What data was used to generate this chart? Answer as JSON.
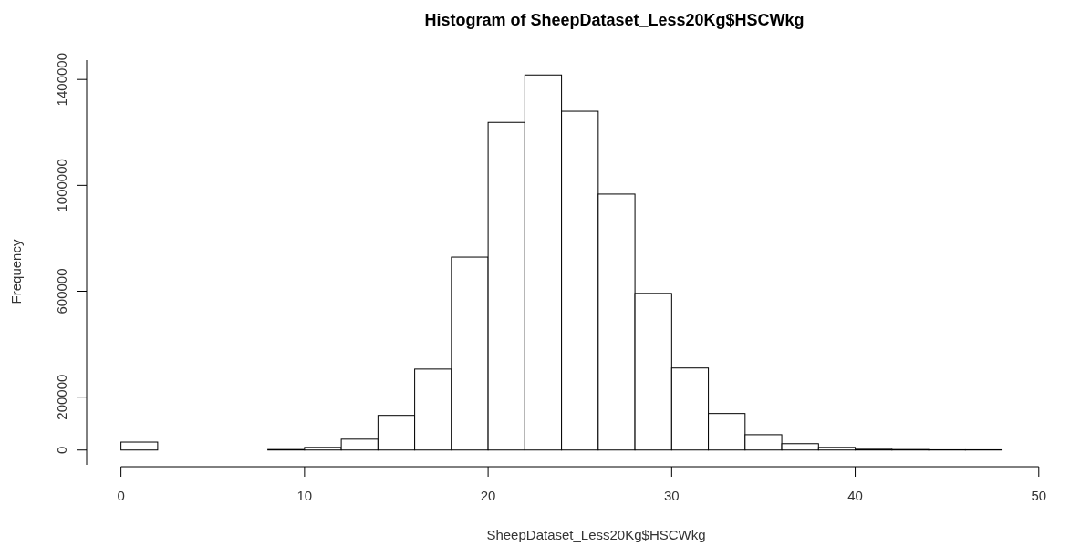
{
  "chart_data": {
    "type": "histogram",
    "title": "Histogram of SheepDataset_Less20Kg$HSCWkg",
    "xlabel": "SheepDataset_Less20Kg$HSCWkg",
    "ylabel": "Frequency",
    "bins": [
      0,
      2,
      4,
      6,
      8,
      10,
      12,
      14,
      16,
      18,
      20,
      22,
      24,
      26,
      28,
      30,
      32,
      34,
      36,
      38,
      40,
      42,
      44,
      46,
      48
    ],
    "values": [
      30000,
      0,
      0,
      0,
      2000,
      10000,
      41000,
      131000,
      306000,
      729000,
      1238000,
      1417000,
      1280000,
      967000,
      592000,
      310000,
      138000,
      58000,
      24000,
      10000,
      3000,
      2000,
      1000,
      1000
    ],
    "color": "#ffffff",
    "xlim": [
      -1.92,
      51.7
    ],
    "ylim": [
      -56000,
      1473000
    ],
    "xticks": [
      0,
      10,
      20,
      30,
      40,
      50
    ],
    "yticks": [
      0,
      200000,
      600000,
      1000000,
      1400000
    ],
    "grid": false
  }
}
